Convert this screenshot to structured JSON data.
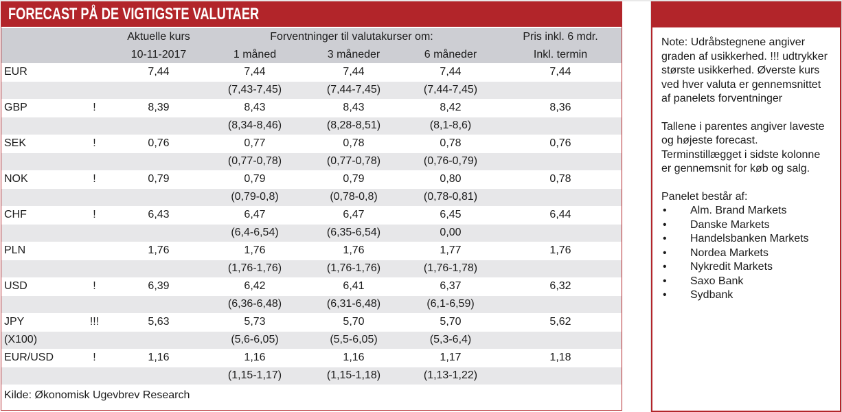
{
  "title": "FORECAST PÅ DE VIGTIGSTE VALUTAER",
  "table": {
    "header": {
      "aktuelle_kurs": "Aktuelle kurs",
      "date": "10-11-2017",
      "forventninger": "Forventninger til valutakurser om:",
      "m1": "1 måned",
      "m3": "3 måneder",
      "m6": "6 måneder",
      "pris": "Pris inkl. 6 mdr.",
      "termin": "Inkl. termin"
    },
    "rows": [
      {
        "currency": "EUR",
        "sub": "",
        "uncertainty": "",
        "current": "7,44",
        "m1": "7,44",
        "m1_range": "(7,43-7,45)",
        "m3": "7,44",
        "m3_range": "(7,44-7,45)",
        "m6": "7,44",
        "m6_range": "(7,44-7,45)",
        "pris": "7,44"
      },
      {
        "currency": "GBP",
        "sub": "",
        "uncertainty": "!",
        "current": "8,39",
        "m1": "8,43",
        "m1_range": "(8,34-8,46)",
        "m3": "8,43",
        "m3_range": "(8,28-8,51)",
        "m6": "8,42",
        "m6_range": "(8,1-8,6)",
        "pris": "8,36"
      },
      {
        "currency": "SEK",
        "sub": "",
        "uncertainty": "!",
        "current": "0,76",
        "m1": "0,77",
        "m1_range": "(0,77-0,78)",
        "m3": "0,78",
        "m3_range": "(0,77-0,78)",
        "m6": "0,78",
        "m6_range": "(0,76-0,79)",
        "pris": "0,76"
      },
      {
        "currency": "NOK",
        "sub": "",
        "uncertainty": "!",
        "current": "0,79",
        "m1": "0,79",
        "m1_range": "(0,79-0,8)",
        "m3": "0,79",
        "m3_range": "(0,78-0,8)",
        "m6": "0,80",
        "m6_range": "(0,78-0,81)",
        "pris": "0,78"
      },
      {
        "currency": "CHF",
        "sub": "",
        "uncertainty": "!",
        "current": "6,43",
        "m1": "6,47",
        "m1_range": "(6,4-6,54)",
        "m3": "6,47",
        "m3_range": "(6,35-6,54)",
        "m6": "6,45",
        "m6_range": "0,00",
        "pris": "6,44"
      },
      {
        "currency": "PLN",
        "sub": "",
        "uncertainty": "",
        "current": "1,76",
        "m1": "1,76",
        "m1_range": "(1,76-1,76)",
        "m3": "1,76",
        "m3_range": "(1,76-1,76)",
        "m6": "1,77",
        "m6_range": "(1,76-1,78)",
        "pris": "1,76"
      },
      {
        "currency": "USD",
        "sub": "",
        "uncertainty": "!",
        "current": "6,39",
        "m1": "6,42",
        "m1_range": "(6,36-6,48)",
        "m3": "6,41",
        "m3_range": "(6,31-6,48)",
        "m6": "6,37",
        "m6_range": "(6,1-6,59)",
        "pris": "6,32"
      },
      {
        "currency": "JPY",
        "sub": "(X100)",
        "uncertainty": "!!!",
        "current": "5,63",
        "m1": "5,73",
        "m1_range": "(5,6-6,05)",
        "m3": "5,70",
        "m3_range": "(5,5-6,05)",
        "m6": "5,70",
        "m6_range": "(5,3-6,4)",
        "pris": "5,62"
      },
      {
        "currency": "EUR/USD",
        "sub": "",
        "uncertainty": "!",
        "current": "1,16",
        "m1": "1,16",
        "m1_range": "(1,15-1,17)",
        "m3": "1,16",
        "m3_range": "(1,15-1,18)",
        "m6": "1,17",
        "m6_range": "(1,13-1,22)",
        "pris": "1,18"
      }
    ],
    "source": "Kilde: Økonomisk Ugevbrev Research"
  },
  "note_panel": {
    "paragraph_1": "Note: Udråbstegnene angiver graden af usikkerhed. !!! udtrykker største usikkerhed. Øverste kurs ved hver valuta er gennemsnittet af panelets forventninger",
    "paragraph_2": "Tallene i parentes angiver laveste og højeste forecast. Terminstillægget i sidste kolonne er gennemsnit for køb og salg.",
    "panel_intro": "Panelet består af:",
    "bullet_char": "•",
    "panel_members": [
      "Alm. Brand Markets",
      "Danske Markets",
      "Handelsbanken Markets",
      "Nordea Markets",
      "Nykredit Markets",
      "Saxo Bank",
      "Sydbank"
    ]
  },
  "colors": {
    "accent_red": "#b2252a",
    "header_gray": "#cdced3",
    "stripe_gray": "#e7e7e9"
  }
}
